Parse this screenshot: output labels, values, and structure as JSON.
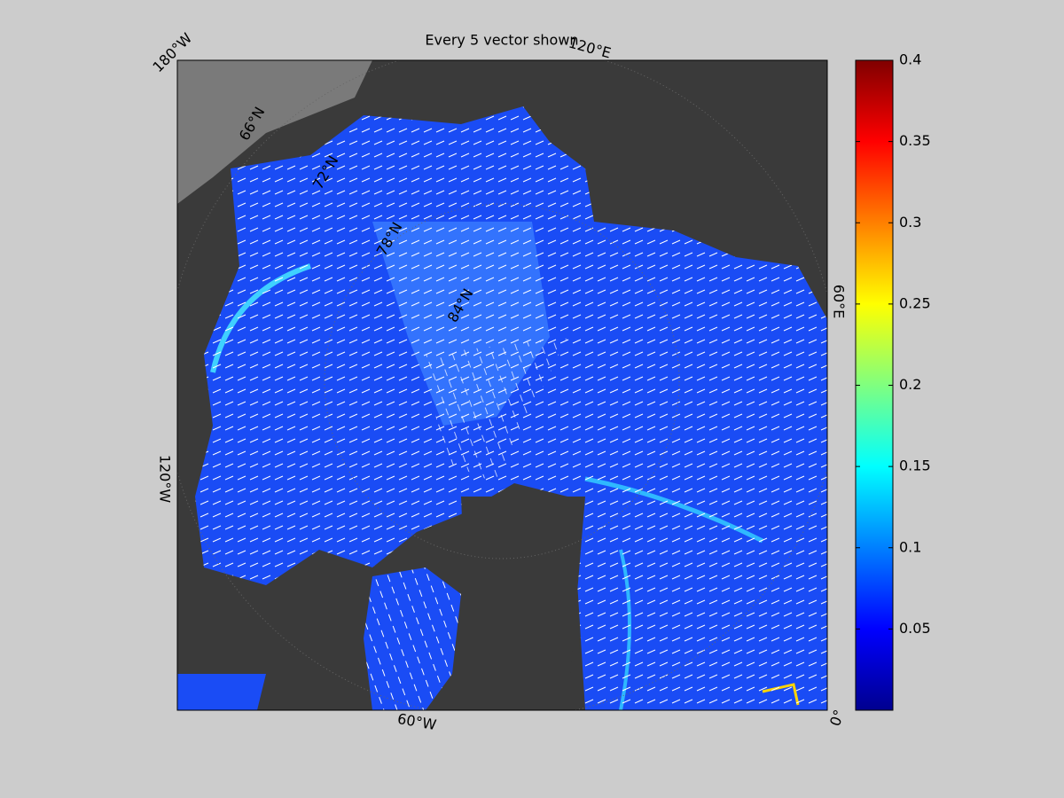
{
  "title": "Every 5 vector shown",
  "map": {
    "labels": [
      "180°W",
      "120°E",
      "60°E",
      "120°W",
      "60°W",
      "0°",
      "66°N",
      "72°N",
      "78°N",
      "84°N"
    ]
  },
  "colorbar": {
    "lim": [
      0,
      0.4
    ],
    "ticks": [
      0.05,
      0.1,
      0.15,
      0.2,
      0.25,
      0.3,
      0.35,
      0.4
    ]
  }
}
